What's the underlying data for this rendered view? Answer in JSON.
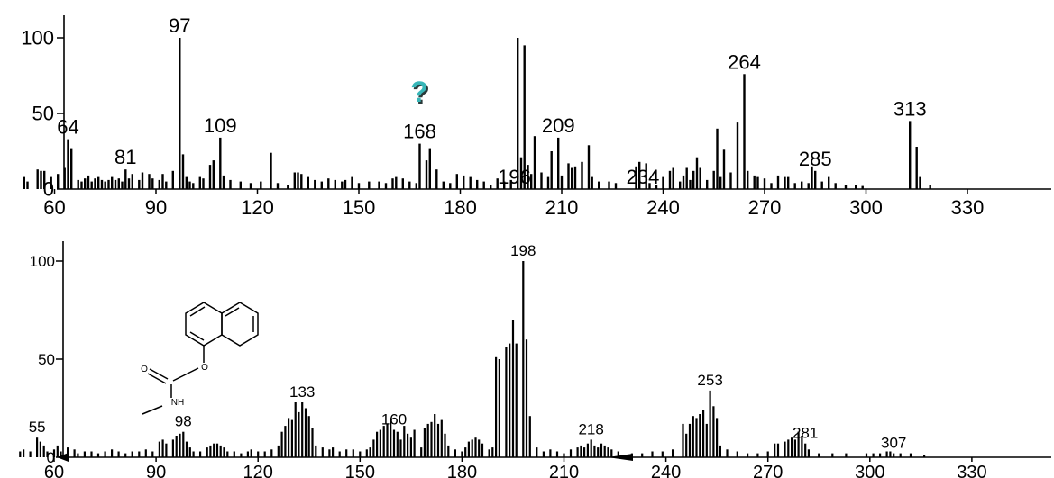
{
  "chart_data": [
    {
      "type": "bar",
      "xlim": [
        45,
        335
      ],
      "ylim": [
        0,
        110
      ],
      "x_ticks": [
        60,
        90,
        120,
        150,
        180,
        210,
        240,
        270,
        300,
        330
      ],
      "y_ticks": [
        0,
        50,
        100
      ],
      "annotation": "?",
      "peak_labels": [
        64,
        81,
        97,
        109,
        168,
        196,
        209,
        234,
        264,
        285,
        313
      ],
      "peaks": [
        [
          51,
          8
        ],
        [
          52,
          5
        ],
        [
          55,
          13
        ],
        [
          56,
          12
        ],
        [
          57,
          12
        ],
        [
          59,
          8
        ],
        [
          61,
          10
        ],
        [
          63,
          14
        ],
        [
          64,
          33
        ],
        [
          65,
          27
        ],
        [
          67,
          6
        ],
        [
          68,
          5
        ],
        [
          69,
          7
        ],
        [
          70,
          9
        ],
        [
          71,
          5
        ],
        [
          72,
          7
        ],
        [
          73,
          8
        ],
        [
          74,
          6
        ],
        [
          75,
          5
        ],
        [
          76,
          6
        ],
        [
          77,
          8
        ],
        [
          78,
          6
        ],
        [
          79,
          7
        ],
        [
          80,
          5
        ],
        [
          81,
          13
        ],
        [
          82,
          7
        ],
        [
          83,
          10
        ],
        [
          85,
          6
        ],
        [
          86,
          11
        ],
        [
          88,
          10
        ],
        [
          89,
          7
        ],
        [
          91,
          6
        ],
        [
          92,
          10
        ],
        [
          93,
          5
        ],
        [
          95,
          12
        ],
        [
          97,
          100
        ],
        [
          98,
          23
        ],
        [
          99,
          8
        ],
        [
          100,
          5
        ],
        [
          101,
          4
        ],
        [
          103,
          8
        ],
        [
          104,
          7
        ],
        [
          106,
          16
        ],
        [
          107,
          19
        ],
        [
          109,
          34
        ],
        [
          110,
          9
        ],
        [
          112,
          6
        ],
        [
          115,
          5
        ],
        [
          118,
          4
        ],
        [
          121,
          5
        ],
        [
          124,
          24
        ],
        [
          126,
          4
        ],
        [
          129,
          3
        ],
        [
          131,
          11
        ],
        [
          132,
          11
        ],
        [
          133,
          10
        ],
        [
          135,
          8
        ],
        [
          137,
          6
        ],
        [
          139,
          5
        ],
        [
          141,
          7
        ],
        [
          143,
          6
        ],
        [
          145,
          5
        ],
        [
          146,
          6
        ],
        [
          148,
          8
        ],
        [
          150,
          4
        ],
        [
          153,
          5
        ],
        [
          156,
          5
        ],
        [
          158,
          4
        ],
        [
          160,
          7
        ],
        [
          161,
          8
        ],
        [
          163,
          7
        ],
        [
          165,
          5
        ],
        [
          167,
          4
        ],
        [
          168,
          30
        ],
        [
          170,
          19
        ],
        [
          171,
          27
        ],
        [
          173,
          13
        ],
        [
          175,
          5
        ],
        [
          177,
          4
        ],
        [
          179,
          10
        ],
        [
          181,
          9
        ],
        [
          183,
          8
        ],
        [
          185,
          6
        ],
        [
          187,
          5
        ],
        [
          189,
          3
        ],
        [
          191,
          7
        ],
        [
          193,
          5
        ],
        [
          195,
          6
        ],
        [
          197,
          100
        ],
        [
          198,
          21
        ],
        [
          199,
          95
        ],
        [
          200,
          16
        ],
        [
          201,
          10
        ],
        [
          202,
          35
        ],
        [
          204,
          11
        ],
        [
          206,
          8
        ],
        [
          207,
          25
        ],
        [
          209,
          34
        ],
        [
          210,
          9
        ],
        [
          212,
          17
        ],
        [
          213,
          14
        ],
        [
          214,
          15
        ],
        [
          216,
          18
        ],
        [
          218,
          29
        ],
        [
          219,
          8
        ],
        [
          221,
          5
        ],
        [
          224,
          5
        ],
        [
          226,
          4
        ],
        [
          232,
          15
        ],
        [
          233,
          18
        ],
        [
          235,
          17
        ],
        [
          236,
          4
        ],
        [
          238,
          3
        ],
        [
          240,
          8
        ],
        [
          242,
          12
        ],
        [
          243,
          14
        ],
        [
          245,
          5
        ],
        [
          246,
          9
        ],
        [
          247,
          14
        ],
        [
          248,
          6
        ],
        [
          249,
          12
        ],
        [
          250,
          21
        ],
        [
          251,
          14
        ],
        [
          253,
          6
        ],
        [
          255,
          12
        ],
        [
          256,
          40
        ],
        [
          257,
          8
        ],
        [
          258,
          26
        ],
        [
          260,
          11
        ],
        [
          262,
          44
        ],
        [
          264,
          76
        ],
        [
          265,
          12
        ],
        [
          267,
          9
        ],
        [
          268,
          8
        ],
        [
          270,
          7
        ],
        [
          272,
          4
        ],
        [
          274,
          9
        ],
        [
          276,
          8
        ],
        [
          277,
          8
        ],
        [
          279,
          4
        ],
        [
          281,
          5
        ],
        [
          283,
          4
        ],
        [
          284,
          15
        ],
        [
          285,
          12
        ],
        [
          287,
          5
        ],
        [
          289,
          8
        ],
        [
          291,
          4
        ],
        [
          294,
          3
        ],
        [
          297,
          3
        ],
        [
          299,
          2
        ],
        [
          313,
          45
        ],
        [
          315,
          28
        ],
        [
          316,
          8
        ],
        [
          319,
          3
        ]
      ]
    },
    {
      "type": "bar",
      "xlim": [
        45,
        335
      ],
      "ylim": [
        0,
        110
      ],
      "x_ticks": [
        60,
        90,
        120,
        150,
        180,
        210,
        240,
        270,
        300,
        330
      ],
      "y_ticks": [
        0,
        50,
        100
      ],
      "peak_labels": [
        55,
        98,
        133,
        160,
        198,
        218,
        253,
        281,
        307
      ],
      "structure_labels": [
        "O",
        "O",
        "NH"
      ],
      "peaks": [
        [
          50,
          3
        ],
        [
          51,
          4
        ],
        [
          53,
          3
        ],
        [
          55,
          10
        ],
        [
          56,
          8
        ],
        [
          57,
          6
        ],
        [
          58,
          3
        ],
        [
          60,
          4
        ],
        [
          61,
          6
        ],
        [
          62,
          3
        ],
        [
          64,
          5
        ],
        [
          66,
          4
        ],
        [
          67,
          2
        ],
        [
          69,
          3
        ],
        [
          71,
          3
        ],
        [
          73,
          2
        ],
        [
          75,
          3
        ],
        [
          77,
          4
        ],
        [
          79,
          3
        ],
        [
          81,
          2
        ],
        [
          83,
          3
        ],
        [
          85,
          3
        ],
        [
          87,
          4
        ],
        [
          89,
          3
        ],
        [
          91,
          8
        ],
        [
          92,
          9
        ],
        [
          93,
          7
        ],
        [
          95,
          9
        ],
        [
          96,
          11
        ],
        [
          97,
          12
        ],
        [
          98,
          13
        ],
        [
          99,
          8
        ],
        [
          100,
          5
        ],
        [
          101,
          3
        ],
        [
          103,
          3
        ],
        [
          105,
          5
        ],
        [
          106,
          6
        ],
        [
          107,
          7
        ],
        [
          108,
          7
        ],
        [
          109,
          6
        ],
        [
          110,
          5
        ],
        [
          111,
          3
        ],
        [
          113,
          3
        ],
        [
          115,
          2
        ],
        [
          117,
          3
        ],
        [
          118,
          4
        ],
        [
          120,
          3
        ],
        [
          122,
          3
        ],
        [
          124,
          4
        ],
        [
          126,
          6
        ],
        [
          127,
          13
        ],
        [
          128,
          16
        ],
        [
          129,
          20
        ],
        [
          130,
          19
        ],
        [
          131,
          28
        ],
        [
          132,
          23
        ],
        [
          133,
          28
        ],
        [
          134,
          25
        ],
        [
          135,
          21
        ],
        [
          136,
          15
        ],
        [
          137,
          6
        ],
        [
          139,
          5
        ],
        [
          141,
          4
        ],
        [
          142,
          5
        ],
        [
          144,
          3
        ],
        [
          146,
          4
        ],
        [
          148,
          4
        ],
        [
          150,
          3
        ],
        [
          152,
          4
        ],
        [
          153,
          5
        ],
        [
          154,
          9
        ],
        [
          155,
          13
        ],
        [
          156,
          14
        ],
        [
          157,
          16
        ],
        [
          158,
          17
        ],
        [
          159,
          20
        ],
        [
          160,
          14
        ],
        [
          161,
          13
        ],
        [
          162,
          9
        ],
        [
          163,
          16
        ],
        [
          164,
          12
        ],
        [
          165,
          10
        ],
        [
          166,
          14
        ],
        [
          168,
          5
        ],
        [
          169,
          15
        ],
        [
          170,
          17
        ],
        [
          171,
          18
        ],
        [
          172,
          22
        ],
        [
          173,
          17
        ],
        [
          174,
          19
        ],
        [
          175,
          12
        ],
        [
          176,
          6
        ],
        [
          178,
          4
        ],
        [
          180,
          3
        ],
        [
          181,
          5
        ],
        [
          182,
          8
        ],
        [
          183,
          9
        ],
        [
          184,
          10
        ],
        [
          185,
          9
        ],
        [
          186,
          7
        ],
        [
          188,
          4
        ],
        [
          189,
          5
        ],
        [
          190,
          51
        ],
        [
          191,
          50
        ],
        [
          193,
          56
        ],
        [
          194,
          58
        ],
        [
          195,
          70
        ],
        [
          196,
          58
        ],
        [
          198,
          100
        ],
        [
          199,
          60
        ],
        [
          200,
          21
        ],
        [
          202,
          5
        ],
        [
          204,
          3
        ],
        [
          206,
          4
        ],
        [
          208,
          3
        ],
        [
          210,
          2
        ],
        [
          212,
          4
        ],
        [
          214,
          5
        ],
        [
          215,
          6
        ],
        [
          216,
          5
        ],
        [
          217,
          7
        ],
        [
          218,
          9
        ],
        [
          219,
          6
        ],
        [
          220,
          5
        ],
        [
          221,
          7
        ],
        [
          222,
          6
        ],
        [
          223,
          5
        ],
        [
          224,
          4
        ],
        [
          226,
          3
        ],
        [
          230,
          2
        ],
        [
          233,
          2
        ],
        [
          236,
          3
        ],
        [
          239,
          3
        ],
        [
          242,
          4
        ],
        [
          245,
          17
        ],
        [
          246,
          12
        ],
        [
          247,
          17
        ],
        [
          248,
          21
        ],
        [
          249,
          20
        ],
        [
          250,
          22
        ],
        [
          251,
          24
        ],
        [
          252,
          17
        ],
        [
          253,
          34
        ],
        [
          254,
          26
        ],
        [
          255,
          20
        ],
        [
          256,
          6
        ],
        [
          258,
          4
        ],
        [
          261,
          3
        ],
        [
          264,
          2
        ],
        [
          267,
          2
        ],
        [
          270,
          3
        ],
        [
          272,
          7
        ],
        [
          273,
          7
        ],
        [
          275,
          8
        ],
        [
          276,
          9
        ],
        [
          277,
          10
        ],
        [
          278,
          9
        ],
        [
          279,
          13
        ],
        [
          280,
          11
        ],
        [
          281,
          7
        ],
        [
          282,
          4
        ],
        [
          285,
          2
        ],
        [
          289,
          2
        ],
        [
          293,
          2
        ],
        [
          299,
          2
        ],
        [
          301,
          2
        ],
        [
          303,
          2
        ],
        [
          305,
          3
        ],
        [
          306,
          3
        ],
        [
          307,
          2
        ],
        [
          309,
          2
        ],
        [
          312,
          2
        ],
        [
          316,
          1
        ]
      ]
    }
  ]
}
